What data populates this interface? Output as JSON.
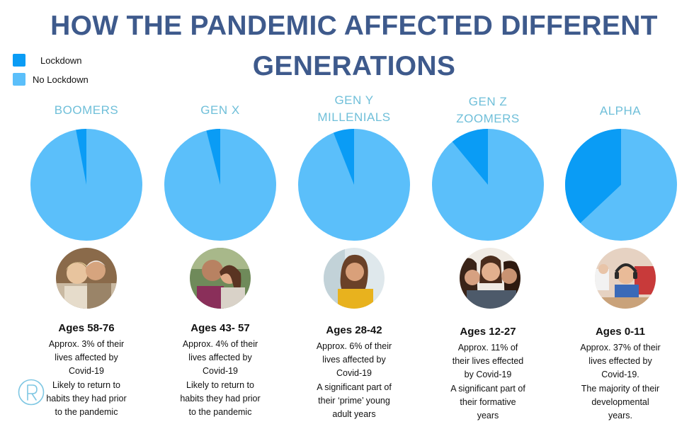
{
  "title": "HOW THE PANDEMIC AFFECTED DIFFERENT GENERATIONS",
  "colors": {
    "title": "#3e5a8c",
    "lockdown": "#0a9cf5",
    "no_lockdown": "#5bbffa",
    "generation_title": "#6fbfd9"
  },
  "legend": [
    {
      "label": "Lockdown",
      "color": "#0a9cf5"
    },
    {
      "label": "No Lockdown",
      "color": "#5bbffa"
    }
  ],
  "chart_data": {
    "type": "pie",
    "title": "HOW THE PANDEMIC AFFECTED DIFFERENT GENERATIONS",
    "series_names": [
      "Lockdown",
      "No Lockdown"
    ],
    "charts": [
      {
        "name": "BOOMERS",
        "lockdown_percent": 3,
        "no_lockdown_percent": 97
      },
      {
        "name": "GEN X",
        "lockdown_percent": 4,
        "no_lockdown_percent": 96
      },
      {
        "name": "GEN Y MILLENIALS",
        "lockdown_percent": 6,
        "no_lockdown_percent": 94
      },
      {
        "name": "GEN Z ZOOMERS",
        "lockdown_percent": 11,
        "no_lockdown_percent": 89
      },
      {
        "name": "ALPHA",
        "lockdown_percent": 37,
        "no_lockdown_percent": 63
      }
    ]
  },
  "generations": [
    {
      "title_lines": [
        "BOOMERS"
      ],
      "photo": "older-couple-photo",
      "age": "Ages 58-76",
      "description": "Approx. 3% of their\nlives affected by\nCovid-19\nLikely to return to\nhabits they had prior\nto the pandemic"
    },
    {
      "title_lines": [
        "GEN X"
      ],
      "photo": "middle-aged-couple-photo",
      "age": "Ages 43- 57",
      "description": "Approx. 4% of their\nlives affected by\nCovid-19\nLikely to return to\nhabits they had prior\nto the pandemic"
    },
    {
      "title_lines": [
        "GEN Y",
        "MILLENIALS"
      ],
      "photo": "young-woman-photo",
      "age": "Ages 28-42",
      "description": "Approx. 6% of their\nlives affected by\nCovid-19\nA significant part of\ntheir ‘prime’ young\nadult years"
    },
    {
      "title_lines": [
        "GEN Z",
        "ZOOMERS"
      ],
      "photo": "teen-girls-photo",
      "age": "Ages 12-27",
      "description": "Approx. 11% of\ntheir lives effected\nby Covid-19\nA significant part of\ntheir formative\nyears"
    },
    {
      "title_lines": [
        "ALPHA"
      ],
      "photo": "child-with-headphones-photo",
      "age": "Ages 0-11",
      "description": "Approx. 37% of their\nlives effected by\nCovid-19.\nThe majority of their\ndevelopmental\nyears."
    }
  ],
  "logo": {
    "name": "R-logo"
  }
}
